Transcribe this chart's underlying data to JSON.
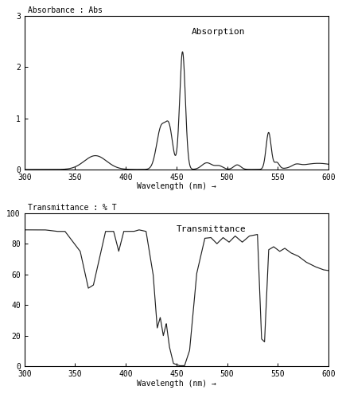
{
  "title_abs": "Absorption",
  "title_trans": "Transmittance",
  "ylabel_abs": "Absorbance : Abs",
  "ylabel_trans": "Transmittance : % T",
  "xlabel": "Wavelength (nm) →",
  "xlim": [
    300,
    600
  ],
  "ylim_abs": [
    0,
    3
  ],
  "ylim_trans": [
    0,
    100
  ],
  "yticks_abs": [
    0,
    1,
    2,
    3
  ],
  "yticks_trans": [
    0,
    20,
    40,
    60,
    80,
    100
  ],
  "xticks": [
    300,
    350,
    400,
    450,
    500,
    550,
    600
  ],
  "line_color": "#222222",
  "bg_color": "#ffffff",
  "border_color": "#000000",
  "figsize": [
    4.3,
    4.95
  ],
  "dpi": 100
}
